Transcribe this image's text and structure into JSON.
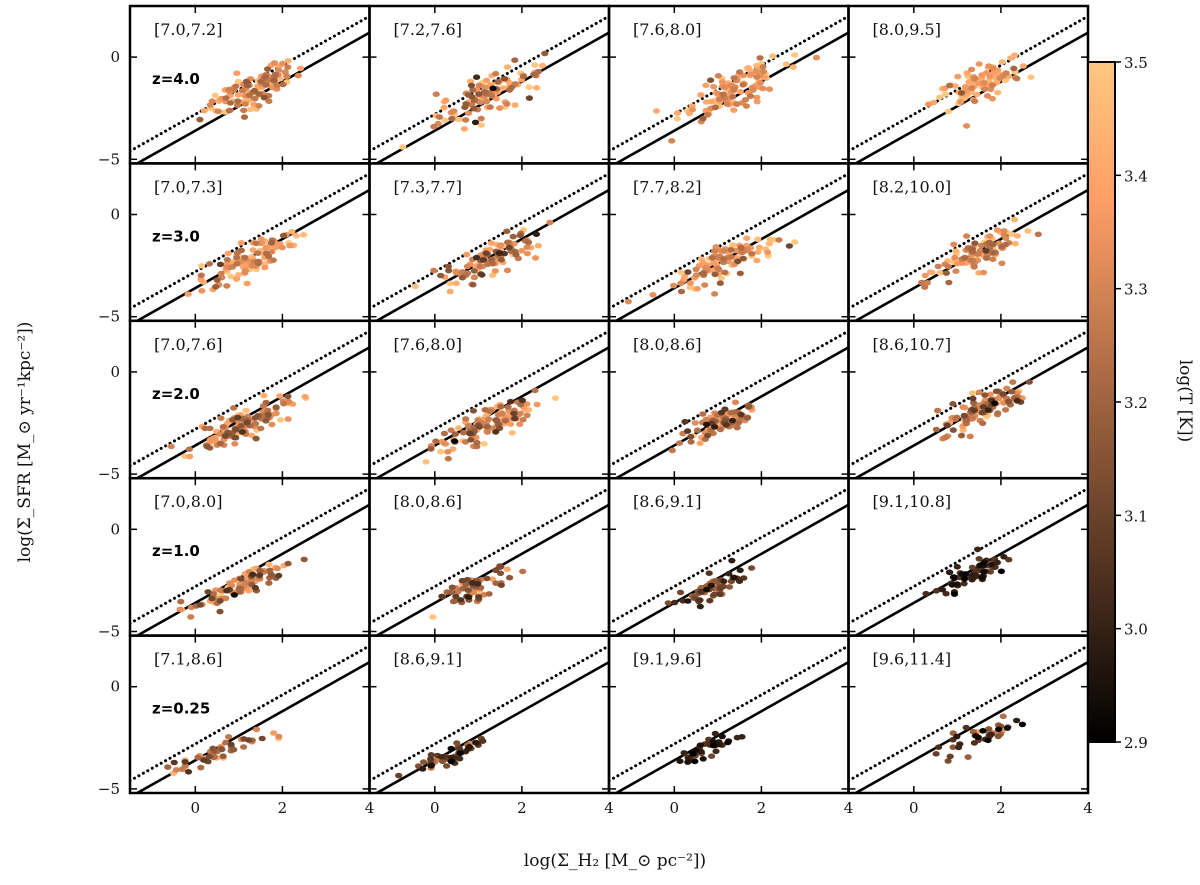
{
  "chart_data": {
    "type": "scatter",
    "layout": "5x4 grid of panels, shared axes",
    "xlabel": "log(Σ_H₂ [M_⊙ pc⁻²])",
    "ylabel": "log(Σ_SFR [M_⊙ yr⁻¹kpc⁻²])",
    "xlim": [
      -1.5,
      4
    ],
    "ylim": [
      -5.2,
      2.5
    ],
    "xticks": [
      0,
      2,
      4
    ],
    "yticks": [
      -5,
      0
    ],
    "xtick_labels": [
      "0",
      "2",
      "4"
    ],
    "ytick_labels": [
      "−5",
      "0"
    ],
    "grid": false,
    "colorbar": {
      "label": "log(T [K])",
      "min": 2.9,
      "max": 3.5,
      "ticks": [
        "3.5",
        "3.4",
        "3.3",
        "3.2",
        "3.1",
        "3.0",
        "2.9"
      ],
      "tick_values": [
        3.5,
        3.4,
        3.3,
        3.2,
        3.1,
        3.0,
        2.9
      ],
      "colormap": "copper",
      "colors": [
        "#000000",
        "#ffc77f"
      ]
    },
    "reference_lines": [
      {
        "style": "solid",
        "slope": 1.2,
        "intercept": -3.6
      },
      {
        "style": "dotted",
        "slope": 1.2,
        "intercept": -2.8
      }
    ],
    "redshift_labels": [
      "z=4.0",
      "z=3.0",
      "z=2.0",
      "z=1.0",
      "z=0.25"
    ],
    "panels": [
      [
        {
          "range": "[7.0,7.2]",
          "center": [
            1.3,
            -1.6
          ],
          "n": 110,
          "sx": 0.55,
          "sy": 0.9,
          "t_mean": 3.35,
          "t_sd": 0.1
        },
        {
          "range": "[7.2,7.6]",
          "center": [
            1.3,
            -1.8
          ],
          "n": 110,
          "sx": 0.6,
          "sy": 1.0,
          "t_mean": 3.33,
          "t_sd": 0.12
        },
        {
          "range": "[7.6,8.0]",
          "center": [
            1.3,
            -1.6
          ],
          "n": 120,
          "sx": 0.6,
          "sy": 1.0,
          "t_mean": 3.38,
          "t_sd": 0.09
        },
        {
          "range": "[8.0,9.5]",
          "center": [
            1.5,
            -1.3
          ],
          "n": 100,
          "sx": 0.5,
          "sy": 0.9,
          "t_mean": 3.4,
          "t_sd": 0.08
        }
      ],
      [
        {
          "range": "[7.0,7.3]",
          "center": [
            1.2,
            -2.2
          ],
          "n": 110,
          "sx": 0.55,
          "sy": 0.8,
          "t_mean": 3.35,
          "t_sd": 0.1
        },
        {
          "range": "[7.3,7.7]",
          "center": [
            1.2,
            -2.2
          ],
          "n": 110,
          "sx": 0.55,
          "sy": 0.85,
          "t_mean": 3.3,
          "t_sd": 0.12
        },
        {
          "range": "[7.7,8.2]",
          "center": [
            1.2,
            -2.3
          ],
          "n": 100,
          "sx": 0.6,
          "sy": 0.85,
          "t_mean": 3.37,
          "t_sd": 0.09
        },
        {
          "range": "[8.2,10.0]",
          "center": [
            1.5,
            -1.9
          ],
          "n": 100,
          "sx": 0.5,
          "sy": 0.8,
          "t_mean": 3.33,
          "t_sd": 0.1
        }
      ],
      [
        {
          "range": "[7.0,7.6]",
          "center": [
            1.1,
            -2.6
          ],
          "n": 120,
          "sx": 0.55,
          "sy": 0.7,
          "t_mean": 3.3,
          "t_sd": 0.12
        },
        {
          "range": "[7.6,8.0]",
          "center": [
            1.2,
            -2.6
          ],
          "n": 120,
          "sx": 0.55,
          "sy": 0.7,
          "t_mean": 3.28,
          "t_sd": 0.12
        },
        {
          "range": "[8.0,8.6]",
          "center": [
            1.1,
            -2.4
          ],
          "n": 80,
          "sx": 0.45,
          "sy": 0.75,
          "t_mean": 3.28,
          "t_sd": 0.12
        },
        {
          "range": "[8.6,10.7]",
          "center": [
            1.6,
            -1.8
          ],
          "n": 100,
          "sx": 0.5,
          "sy": 0.8,
          "t_mean": 3.28,
          "t_sd": 0.12
        }
      ],
      [
        {
          "range": "[7.0,8.0]",
          "center": [
            1.0,
            -2.8
          ],
          "n": 90,
          "sx": 0.55,
          "sy": 0.6,
          "t_mean": 3.3,
          "t_sd": 0.12
        },
        {
          "range": "[8.0,8.6]",
          "center": [
            0.9,
            -2.9
          ],
          "n": 60,
          "sx": 0.45,
          "sy": 0.55,
          "t_mean": 3.2,
          "t_sd": 0.12
        },
        {
          "range": "[8.6,9.1]",
          "center": [
            0.9,
            -2.9
          ],
          "n": 60,
          "sx": 0.35,
          "sy": 0.6,
          "t_mean": 3.1,
          "t_sd": 0.12
        },
        {
          "range": "[9.1,10.8]",
          "center": [
            1.3,
            -2.2
          ],
          "n": 60,
          "sx": 0.45,
          "sy": 0.6,
          "t_mean": 3.0,
          "t_sd": 0.06
        }
      ],
      [
        {
          "range": "[7.1,8.6]",
          "center": [
            0.6,
            -3.2
          ],
          "n": 50,
          "sx": 0.55,
          "sy": 0.5,
          "t_mean": 3.25,
          "t_sd": 0.13
        },
        {
          "range": "[8.6,9.1]",
          "center": [
            0.4,
            -3.3
          ],
          "n": 45,
          "sx": 0.4,
          "sy": 0.45,
          "t_mean": 3.1,
          "t_sd": 0.1
        },
        {
          "range": "[9.1,9.6]",
          "center": [
            0.8,
            -3.0
          ],
          "n": 40,
          "sx": 0.35,
          "sy": 0.45,
          "t_mean": 3.02,
          "t_sd": 0.07
        },
        {
          "range": "[9.6,11.4]",
          "center": [
            1.4,
            -2.5
          ],
          "n": 40,
          "sx": 0.45,
          "sy": 0.55,
          "t_mean": 3.08,
          "t_sd": 0.12
        }
      ]
    ]
  }
}
